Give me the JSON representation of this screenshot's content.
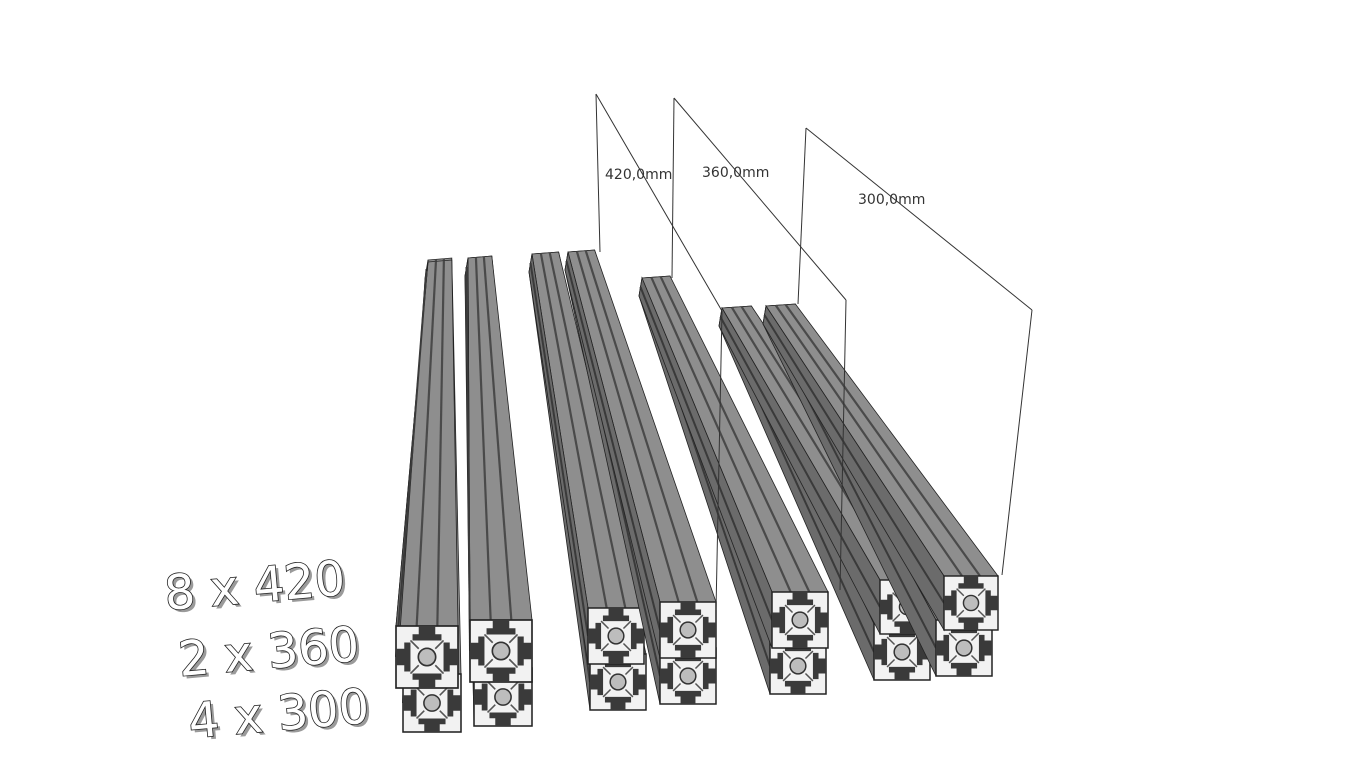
{
  "colors": {
    "profile_top": "#8e8e8e",
    "profile_side": "#6b6b6b",
    "profile_dark": "#4a4a4a",
    "slot": "#3a3a3a",
    "end_face": "#f2f2f2",
    "edge": "#222222"
  },
  "dimensions": [
    {
      "label": "420,0mm"
    },
    {
      "label": "360,0mm"
    },
    {
      "label": "300,0mm"
    }
  ],
  "quantities": [
    {
      "label": "8 x 420"
    },
    {
      "label": "2 x 360"
    },
    {
      "label": "4 x 300"
    }
  ]
}
